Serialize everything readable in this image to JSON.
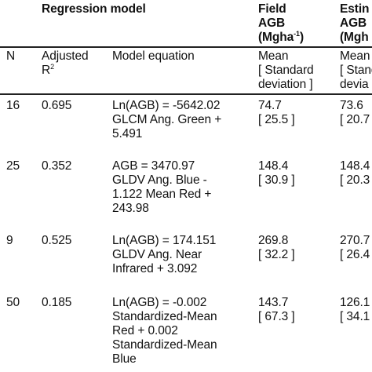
{
  "header": {
    "regression_model": "Regression model",
    "field_line1": "Field",
    "field_line2": "AGB",
    "field_line3_pre": "(Mgha",
    "field_line3_sup": "-1",
    "field_line3_post": ")",
    "est_line1": "Estin",
    "est_line2": "AGB",
    "est_line3": "(Mgh"
  },
  "subheader": {
    "n": "N",
    "adj_line1": "Adjusted",
    "adj_line2_pre": "R",
    "adj_line2_sup": "2",
    "model_equation": "Model equation",
    "field_mean": "Mean",
    "field_sd1": "[ Standard",
    "field_sd2": "deviation ]",
    "est_mean": "Mean",
    "est_sd1": "[ Stand",
    "est_sd2": "devia"
  },
  "rows": [
    {
      "n": "16",
      "r2": "0.695",
      "eq": [
        "Ln(AGB) = -5642.02",
        "GLCM Ang. Green +",
        "5.491"
      ],
      "field_mean": "74.7",
      "field_sd": "[ 25.5 ]",
      "est_mean": "73.6",
      "est_sd": "[ 20.7"
    },
    {
      "n": "25",
      "r2": "0.352",
      "eq": [
        "AGB = 3470.97",
        "GLDV Ang. Blue -",
        "1.122 Mean Red +",
        "243.98"
      ],
      "field_mean": "148.4",
      "field_sd": "[ 30.9 ]",
      "est_mean": "148.4",
      "est_sd": "[ 20.3"
    },
    {
      "n": "9",
      "r2": "0.525",
      "eq": [
        "Ln(AGB) = 174.151",
        "GLDV Ang. Near",
        "Infrared + 3.092"
      ],
      "field_mean": "269.8",
      "field_sd": "[ 32.2 ]",
      "est_mean": "270.7",
      "est_sd": "[ 26.4"
    },
    {
      "n": "50",
      "r2": "0.185",
      "eq": [
        "Ln(AGB) = -0.002",
        "Standardized-Mean",
        "Red + 0.002",
        "Standardized-Mean",
        "Blue"
      ],
      "field_mean": "143.7",
      "field_sd": "[ 67.3 ]",
      "est_mean": "126.1",
      "est_sd": "[ 34.1"
    }
  ]
}
